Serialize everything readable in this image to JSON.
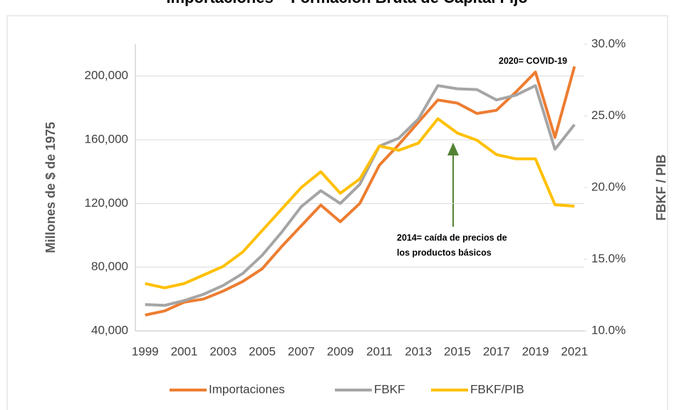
{
  "chart_data": {
    "type": "line",
    "title": "Importaciones – Formación Bruta de Capital Fijo",
    "y_label": "Millones de $ de 1975",
    "y2_label": "FBKF / PIB",
    "annotations": [
      "2020= COVID-19",
      "2014= caída de precios de",
      "los productos básicos"
    ],
    "categories": [
      "1999",
      null,
      "2001",
      null,
      "2003",
      null,
      "2005",
      null,
      "2007",
      null,
      "2009",
      null,
      "2011",
      null,
      "2013",
      null,
      "2015",
      null,
      "2017",
      null,
      "2019",
      null,
      "2021"
    ],
    "ylim": [
      40000,
      220000
    ],
    "yticks": [
      {
        "value": 40000,
        "label": "40,000"
      },
      {
        "value": 80000,
        "label": "80,000"
      },
      {
        "value": 120000,
        "label": "120,000"
      },
      {
        "value": 160000,
        "label": "160,000"
      },
      {
        "value": 200000,
        "label": "200,000"
      }
    ],
    "y2lim": [
      10,
      30
    ],
    "y2ticks": [
      {
        "value": 10,
        "label": "10.0%"
      },
      {
        "value": 15,
        "label": "15.0%"
      },
      {
        "value": 20,
        "label": "20.0%"
      },
      {
        "value": 25,
        "label": "25.0%"
      },
      {
        "value": 30,
        "label": "30.0%"
      }
    ],
    "grid": true,
    "legend": "bottom",
    "series": [
      {
        "name": "Importaciones",
        "color": "#ed7d31",
        "values": [
          49900,
          52500,
          58000,
          60000,
          65000,
          71000,
          79000,
          93000,
          106000,
          119000,
          108500,
          120000,
          144000,
          157000,
          171000,
          185000,
          183000,
          176500,
          178500,
          190000,
          202500,
          161500,
          206000
        ]
      },
      {
        "name": "FBKF",
        "color": "#a5a5a5",
        "values": [
          56500,
          56000,
          59000,
          63000,
          68500,
          76000,
          87500,
          102000,
          118000,
          128000,
          120000,
          132000,
          156000,
          161000,
          173000,
          194000,
          192000,
          191500,
          185000,
          188000,
          194000,
          154000,
          169500
        ]
      },
      {
        "name": "FBKF/PIB",
        "color": "#ffc000",
        "axis": "y2",
        "values": [
          13.3,
          13.0,
          13.3,
          13.9,
          14.5,
          15.5,
          17.0,
          18.5,
          20.0,
          21.1,
          19.6,
          20.6,
          22.9,
          22.6,
          23.1,
          24.8,
          23.8,
          23.3,
          22.3,
          22.0,
          22.0,
          18.8,
          18.7
        ]
      }
    ]
  }
}
